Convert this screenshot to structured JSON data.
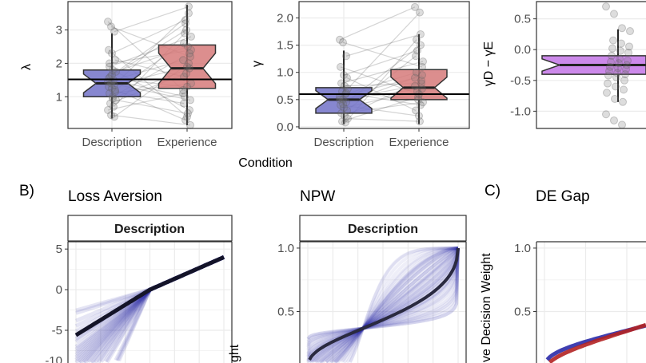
{
  "panel_labels": {
    "b": "B)",
    "c": "C)"
  },
  "x_axis_title": "Condition",
  "colors": {
    "description": "#7272c8",
    "experience": "#d67a7a",
    "gap": "#c77ce8",
    "curve_dark": "#141428",
    "red": "#b22222",
    "blue": "#2a2aa8"
  },
  "chart_data": [
    {
      "type": "boxplot",
      "ylabel": "λ",
      "categories": [
        "Description",
        "Experience"
      ],
      "ylim": [
        0.05,
        3.85
      ],
      "yticks": [
        1,
        2,
        3
      ],
      "reference_line": 1.52,
      "grid": true,
      "boxes": [
        {
          "name": "Description",
          "q1": 1.0,
          "median": 1.4,
          "q3": 1.8,
          "whisker_low": 0.35,
          "whisker_high": 2.9
        },
        {
          "name": "Experience",
          "q1": 1.25,
          "median": 1.85,
          "q3": 2.55,
          "whisker_low": 0.15,
          "whisker_high": 3.75
        }
      ],
      "pairs": [
        [
          3.25,
          1.2
        ],
        [
          3.1,
          2.2
        ],
        [
          2.95,
          3.7
        ],
        [
          2.4,
          0.4
        ],
        [
          2.3,
          3.3
        ],
        [
          2.1,
          1.6
        ],
        [
          1.9,
          2.8
        ],
        [
          1.8,
          0.6
        ],
        [
          1.75,
          2.5
        ],
        [
          1.6,
          3.0
        ],
        [
          1.5,
          1.0
        ],
        [
          1.45,
          2.1
        ],
        [
          1.4,
          0.9
        ],
        [
          1.35,
          3.5
        ],
        [
          1.3,
          1.9
        ],
        [
          1.25,
          0.3
        ],
        [
          1.2,
          2.6
        ],
        [
          1.1,
          1.4
        ],
        [
          1.0,
          2.3
        ],
        [
          0.9,
          0.5
        ],
        [
          0.8,
          1.7
        ],
        [
          0.7,
          2.9
        ],
        [
          0.6,
          1.1
        ],
        [
          0.45,
          0.15
        ],
        [
          0.4,
          2.0
        ],
        [
          1.55,
          1.3
        ],
        [
          1.65,
          3.2
        ],
        [
          1.15,
          0.8
        ],
        [
          2.0,
          2.4
        ],
        [
          0.95,
          1.85
        ]
      ]
    },
    {
      "type": "boxplot",
      "ylabel": "γ",
      "categories": [
        "Description",
        "Experience"
      ],
      "ylim": [
        -0.03,
        2.3
      ],
      "yticks": [
        0.0,
        0.5,
        1.0,
        1.5,
        2.0
      ],
      "reference_line": 0.6,
      "grid": true,
      "boxes": [
        {
          "name": "Description",
          "q1": 0.25,
          "median": 0.5,
          "q3": 0.72,
          "whisker_low": 0.05,
          "whisker_high": 1.4
        },
        {
          "name": "Experience",
          "q1": 0.5,
          "median": 0.72,
          "q3": 1.05,
          "whisker_low": 0.05,
          "whisker_high": 1.7
        }
      ],
      "pairs": [
        [
          1.6,
          2.2
        ],
        [
          1.55,
          1.1
        ],
        [
          1.3,
          1.7
        ],
        [
          1.1,
          0.6
        ],
        [
          0.95,
          1.4
        ],
        [
          0.9,
          0.3
        ],
        [
          0.8,
          1.2
        ],
        [
          0.75,
          0.8
        ],
        [
          0.7,
          2.1
        ],
        [
          0.65,
          0.5
        ],
        [
          0.6,
          1.0
        ],
        [
          0.55,
          0.9
        ],
        [
          0.5,
          0.7
        ],
        [
          0.45,
          1.5
        ],
        [
          0.4,
          0.2
        ],
        [
          0.35,
          0.65
        ],
        [
          0.3,
          1.3
        ],
        [
          0.25,
          0.45
        ],
        [
          0.2,
          0.85
        ],
        [
          0.15,
          0.1
        ],
        [
          0.1,
          0.55
        ],
        [
          0.08,
          1.6
        ],
        [
          0.5,
          0.75
        ],
        [
          0.42,
          0.95
        ],
        [
          0.62,
          0.4
        ]
      ]
    },
    {
      "type": "boxplot",
      "ylabel": "γD − γE",
      "ylim": [
        -1.28,
        0.78
      ],
      "yticks": [
        -1.0,
        -0.5,
        0.0,
        0.5
      ],
      "grid": true,
      "boxes": [
        {
          "q1": -0.4,
          "median": -0.25,
          "q3": -0.1,
          "whisker_low": -0.85,
          "whisker_high": 0.33
        }
      ],
      "points": [
        0.7,
        0.58,
        0.35,
        0.3,
        0.15,
        0.1,
        0.05,
        0.02,
        -0.02,
        -0.05,
        -0.1,
        -0.15,
        -0.18,
        -0.2,
        -0.22,
        -0.25,
        -0.28,
        -0.3,
        -0.32,
        -0.35,
        -0.38,
        -0.4,
        -0.42,
        -0.45,
        -0.5,
        -0.55,
        -0.6,
        -0.65,
        -0.7,
        -0.8,
        -0.85,
        -1.05,
        -1.15,
        -1.22
      ]
    },
    {
      "type": "line",
      "title": "Loss Aversion",
      "facet": "Description",
      "yticks": [
        5,
        0,
        -5,
        -10
      ],
      "ylim": [
        -10.5,
        5.9
      ],
      "xlim": [
        -10,
        10
      ],
      "gain_slope": 0.4,
      "lambda_mean": 1.4
    },
    {
      "type": "line",
      "title": "NPW",
      "facet": "Description",
      "yticks": [
        1.0,
        0.5
      ],
      "ylim": [
        0,
        1.05
      ],
      "xlim": [
        0,
        1
      ],
      "ylabel_visible": "ght",
      "gamma_mean": 0.5
    },
    {
      "type": "line",
      "title": "DE Gap",
      "yticks": [
        1.0,
        0.5
      ],
      "ylim": [
        0,
        1.05
      ],
      "xlim": [
        0,
        1
      ],
      "ylabel_visible": "ve Decision Weight",
      "series": [
        {
          "gamma": 0.5,
          "color": "blue"
        },
        {
          "gamma": 0.62,
          "color": "red"
        }
      ]
    }
  ]
}
